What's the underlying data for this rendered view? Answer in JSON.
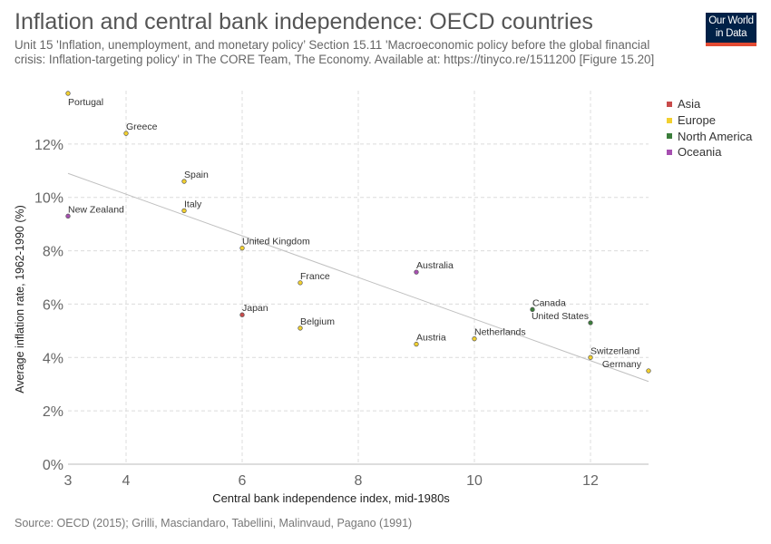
{
  "header": {
    "title": "Inflation and central bank independence: OECD countries",
    "subtitle": "Unit 15 'Inflation, unemployment, and monetary policy’ Section 15.11 'Macroeconomic policy before the global financial crisis: Inflation-targeting policy' in The CORE Team, The Economy. Available at: https://tinyco.re/1511200 [Figure 15.20]",
    "logo_line1": "Our World",
    "logo_line2": "in Data"
  },
  "footer": {
    "source": "Source: OECD (2015); Grilli, Masciandaro, Tabellini, Malinvaud, Pagano (1991)"
  },
  "legend": [
    {
      "name": "Asia",
      "color": "#c84b4b"
    },
    {
      "name": "Europe",
      "color": "#f2d02f"
    },
    {
      "name": "North America",
      "color": "#3b7d3b"
    },
    {
      "name": "Oceania",
      "color": "#a64fb0"
    }
  ],
  "chart_data": {
    "type": "scatter",
    "xlabel": "Central bank independence index, mid-1980s",
    "ylabel": "Average inflation rate, 1962-1990 (%)",
    "xlim": [
      3,
      13
    ],
    "ylim": [
      0,
      14
    ],
    "x_ticks": [
      3,
      4,
      6,
      8,
      10,
      12
    ],
    "y_ticks": [
      0,
      2,
      4,
      6,
      8,
      10,
      12
    ],
    "y_tick_suffix": "%",
    "grid": true,
    "legend_position": "right",
    "trend_line": {
      "x": [
        3,
        13
      ],
      "y": [
        10.9,
        3.1
      ]
    },
    "points": [
      {
        "label": "Portugal",
        "x": 3,
        "y": 13.9,
        "region": "Europe"
      },
      {
        "label": "Greece",
        "x": 4,
        "y": 12.4,
        "region": "Europe"
      },
      {
        "label": "Spain",
        "x": 5,
        "y": 10.6,
        "region": "Europe"
      },
      {
        "label": "Italy",
        "x": 5,
        "y": 9.5,
        "region": "Europe"
      },
      {
        "label": "New Zealand",
        "x": 3,
        "y": 9.3,
        "region": "Oceania"
      },
      {
        "label": "United Kingdom",
        "x": 6,
        "y": 8.1,
        "region": "Europe"
      },
      {
        "label": "France",
        "x": 7,
        "y": 6.8,
        "region": "Europe"
      },
      {
        "label": "Australia",
        "x": 9,
        "y": 7.2,
        "region": "Oceania"
      },
      {
        "label": "Japan",
        "x": 6,
        "y": 5.6,
        "region": "Asia"
      },
      {
        "label": "Belgium",
        "x": 7,
        "y": 5.1,
        "region": "Europe"
      },
      {
        "label": "Austria",
        "x": 9,
        "y": 4.5,
        "region": "Europe"
      },
      {
        "label": "Netherlands",
        "x": 10,
        "y": 4.7,
        "region": "Europe"
      },
      {
        "label": "Canada",
        "x": 11,
        "y": 5.8,
        "region": "North America"
      },
      {
        "label": "United States",
        "x": 12,
        "y": 5.3,
        "region": "North America"
      },
      {
        "label": "Switzerland",
        "x": 12,
        "y": 4.0,
        "region": "Europe"
      },
      {
        "label": "Germany",
        "x": 13,
        "y": 3.5,
        "region": "Europe"
      }
    ]
  }
}
